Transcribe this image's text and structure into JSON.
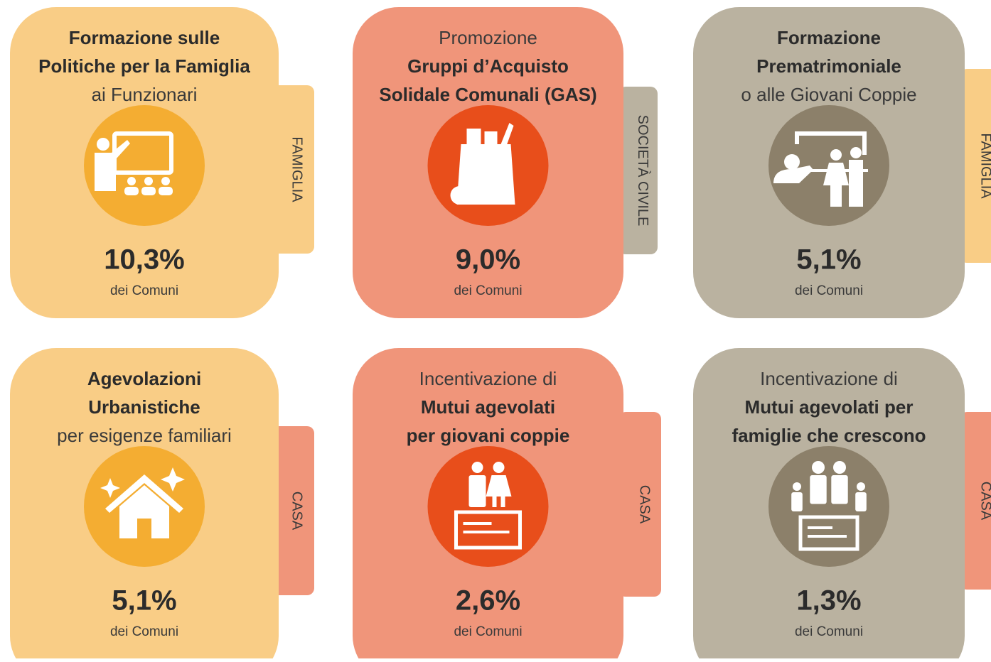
{
  "cards": [
    {
      "lines": [
        {
          "text": "Formazione sulle",
          "weight": "bold"
        },
        {
          "text": "Politiche per la Famiglia",
          "weight": "bold"
        },
        {
          "text": "ai Funzionari",
          "weight": "light"
        }
      ],
      "value": "10,3%",
      "suffix": "dei Comuni",
      "tab": "FAMIGLIA"
    },
    {
      "lines": [
        {
          "text": "Promozione",
          "weight": "light"
        },
        {
          "text": "Gruppi d’Acquisto",
          "weight": "bold"
        },
        {
          "text": "Solidale Comunali (GAS)",
          "weight": "bold"
        }
      ],
      "value": "9,0%",
      "suffix": "dei Comuni",
      "tab": "SOCIETÀ CIVILE"
    },
    {
      "lines": [
        {
          "text": "Formazione",
          "weight": "bold"
        },
        {
          "text": "Prematrimoniale",
          "weight": "bold"
        },
        {
          "text": "o alle Giovani Coppie",
          "weight": "light"
        }
      ],
      "value": "5,1%",
      "suffix": "dei Comuni",
      "tab": "FAMIGLIA"
    },
    {
      "lines": [
        {
          "text": "Agevolazioni",
          "weight": "bold"
        },
        {
          "text": "Urbanistiche",
          "weight": "bold"
        },
        {
          "text": "per esigenze familiari",
          "weight": "light"
        }
      ],
      "value": "5,1%",
      "suffix": "dei Comuni",
      "tab": "CASA"
    },
    {
      "lines": [
        {
          "text": "Incentivazione di",
          "weight": "light"
        },
        {
          "text": "Mutui agevolati",
          "weight": "bold"
        },
        {
          "text": "per giovani coppie",
          "weight": "bold"
        }
      ],
      "value": "2,6%",
      "suffix": "dei Comuni",
      "tab": "CASA"
    },
    {
      "lines": [
        {
          "text": "Incentivazione di",
          "weight": "light"
        },
        {
          "text": "Mutui agevolati per",
          "weight": "bold"
        },
        {
          "text": "famiglie che crescono",
          "weight": "bold"
        }
      ],
      "value": "1,3%",
      "suffix": "dei Comuni",
      "tab": "CASA"
    }
  ]
}
